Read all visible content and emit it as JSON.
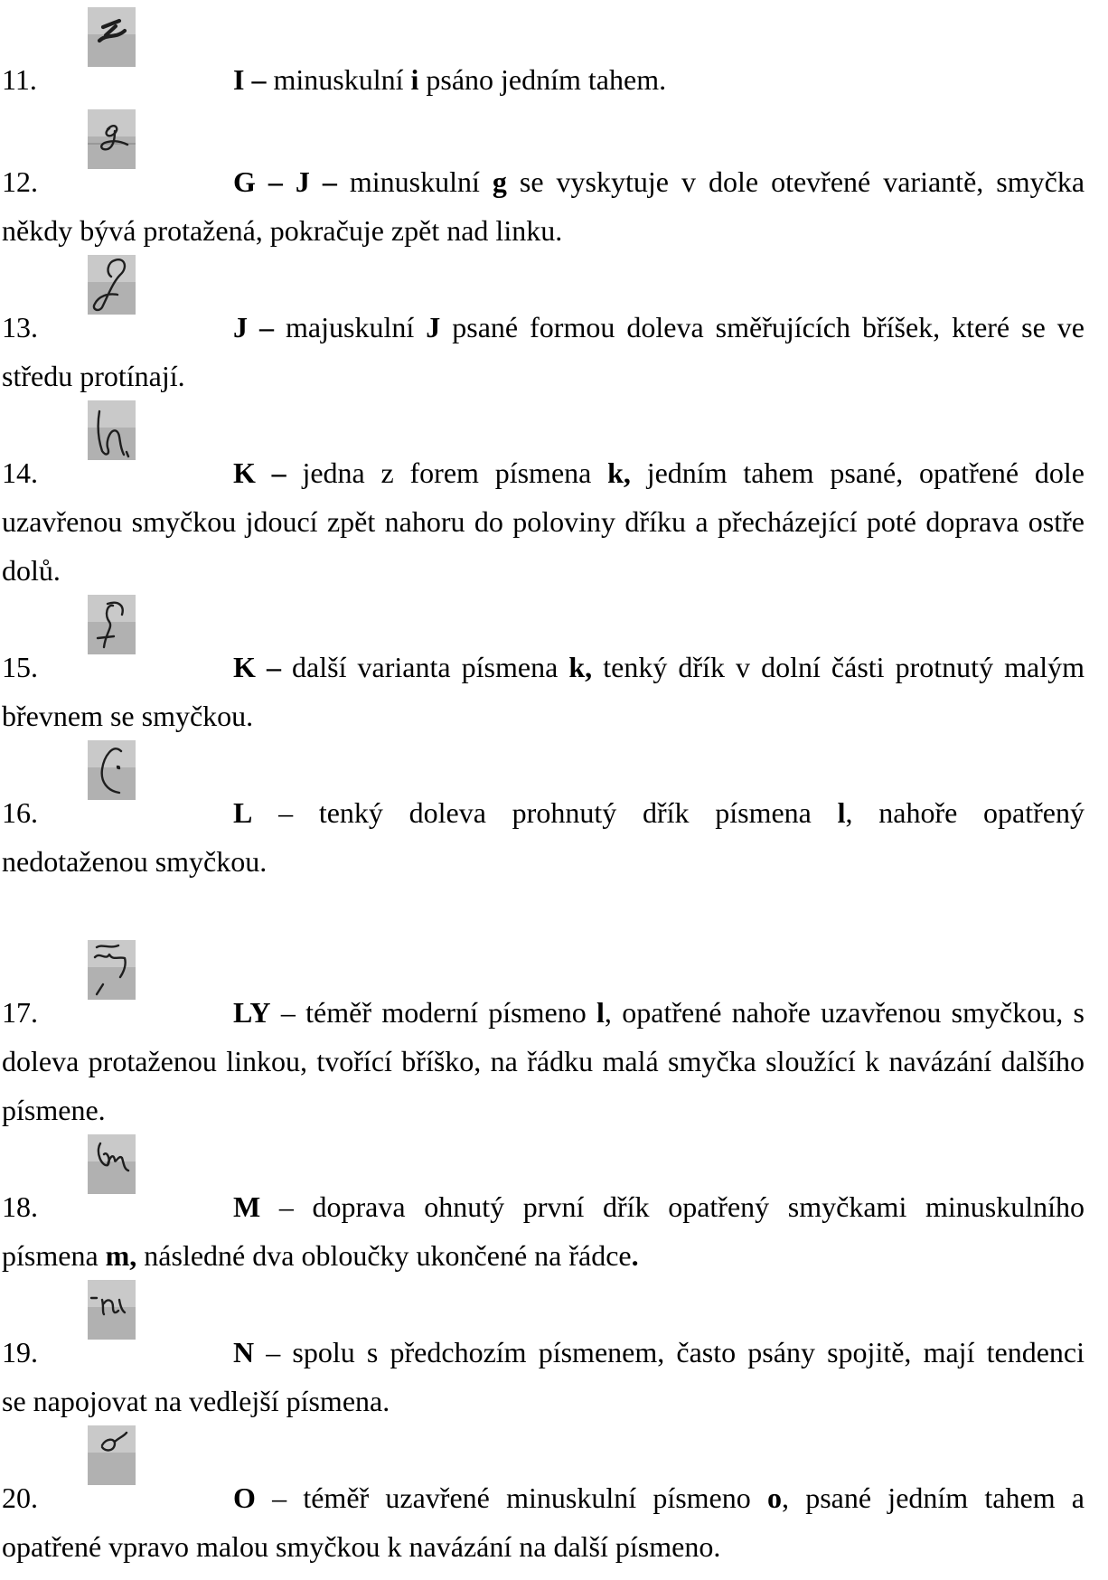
{
  "entries": [
    {
      "number": "11.",
      "sample_icon": "handwritten-i-icon",
      "lines": [
        [
          {
            "text": "I –",
            "bold": true
          },
          {
            "text": " minuskulní "
          },
          {
            "text": "i",
            "bold": true
          },
          {
            "text": " psáno jedním tahem."
          }
        ]
      ]
    },
    {
      "number": "12.",
      "sample_icon": "handwritten-g-icon",
      "lines": [
        [
          {
            "text": "G – J –",
            "bold": true
          },
          {
            "text": " minuskulní "
          },
          {
            "text": "g",
            "bold": true
          },
          {
            "text": " se vyskytuje v dole otevřené variantě, smyčka"
          }
        ],
        [
          {
            "text": "někdy bývá protažená, pokračuje zpět nad linku."
          }
        ]
      ]
    },
    {
      "number": "13.",
      "sample_icon": "handwritten-j-icon",
      "lines": [
        [
          {
            "text": "J –",
            "bold": true
          },
          {
            "text": " majuskulní "
          },
          {
            "text": "J",
            "bold": true
          },
          {
            "text": " psané formou doleva směřujících bříšek, které se ve"
          }
        ],
        [
          {
            "text": "středu protínají."
          }
        ]
      ]
    },
    {
      "number": "14.",
      "sample_icon": "handwritten-k-icon",
      "lines": [
        [
          {
            "text": "K –",
            "bold": true
          },
          {
            "text": " jedna z forem písmena "
          },
          {
            "text": "k,",
            "bold": true
          },
          {
            "text": " jedním tahem psané, opatřené dole"
          }
        ],
        [
          {
            "text": "uzavřenou smyčkou jdoucí zpět nahoru do poloviny dříku a přecházející poté doprava ostře"
          }
        ],
        [
          {
            "text": "dolů."
          }
        ]
      ]
    },
    {
      "number": "15.",
      "sample_icon": "handwritten-k-variant-icon",
      "lines": [
        [
          {
            "text": "K –",
            "bold": true
          },
          {
            "text": " další varianta písmena "
          },
          {
            "text": "k,",
            "bold": true
          },
          {
            "text": " tenký dřík v dolní části protnutý malým"
          }
        ],
        [
          {
            "text": "břevnem se smyčkou."
          }
        ]
      ]
    },
    {
      "number": "16.",
      "sample_icon": "handwritten-l-icon",
      "lines": [
        [
          {
            "text": "L",
            "bold": true
          },
          {
            "text": " – tenký doleva prohnutý dřík písmena "
          },
          {
            "text": "l",
            "bold": true
          },
          {
            "text": ", nahoře opatřený"
          }
        ],
        [
          {
            "text": "nedotaženou smyčkou."
          }
        ]
      ]
    },
    {
      "number": "17.",
      "sample_icon": "handwritten-ly-icon",
      "lines": [
        [
          {
            "text": "LY",
            "bold": true
          },
          {
            "text": " – téměř moderní písmeno "
          },
          {
            "text": "l",
            "bold": true
          },
          {
            "text": ", opatřené nahoře uzavřenou smyčkou, s"
          }
        ],
        [
          {
            "text": "doleva protaženou linkou, tvořící bříško, na řádku malá smyčka sloužící k navázání dalšího"
          }
        ],
        [
          {
            "text": "písmene."
          }
        ]
      ]
    },
    {
      "number": "18.",
      "sample_icon": "handwritten-m-icon",
      "lines": [
        [
          {
            "text": "M",
            "bold": true
          },
          {
            "text": " – doprava ohnutý první dřík opatřený smyčkami minuskulního"
          }
        ],
        [
          {
            "text": "písmena "
          },
          {
            "text": "m,",
            "bold": true
          },
          {
            "text": " následné dva obloučky ukončené na řádce"
          },
          {
            "text": ".",
            "bold": true
          }
        ]
      ]
    },
    {
      "number": "19.",
      "sample_icon": "handwritten-n-icon",
      "lines": [
        [
          {
            "text": "N",
            "bold": true
          },
          {
            "text": " – spolu s předchozím písmenem, často psány spojitě, mají tendenci"
          }
        ],
        [
          {
            "text": "se napojovat na vedlejší písmena."
          }
        ]
      ]
    },
    {
      "number": "20.",
      "sample_icon": "handwritten-o-icon",
      "lines": [
        [
          {
            "text": "O",
            "bold": true
          },
          {
            "text": " – téměř uzavřené minuskulní písmeno "
          },
          {
            "text": "o",
            "bold": true
          },
          {
            "text": ", psané jedním tahem a"
          }
        ],
        [
          {
            "text": "opatřené vpravo malou smyčkou k navázání na další písmeno."
          }
        ]
      ]
    }
  ]
}
